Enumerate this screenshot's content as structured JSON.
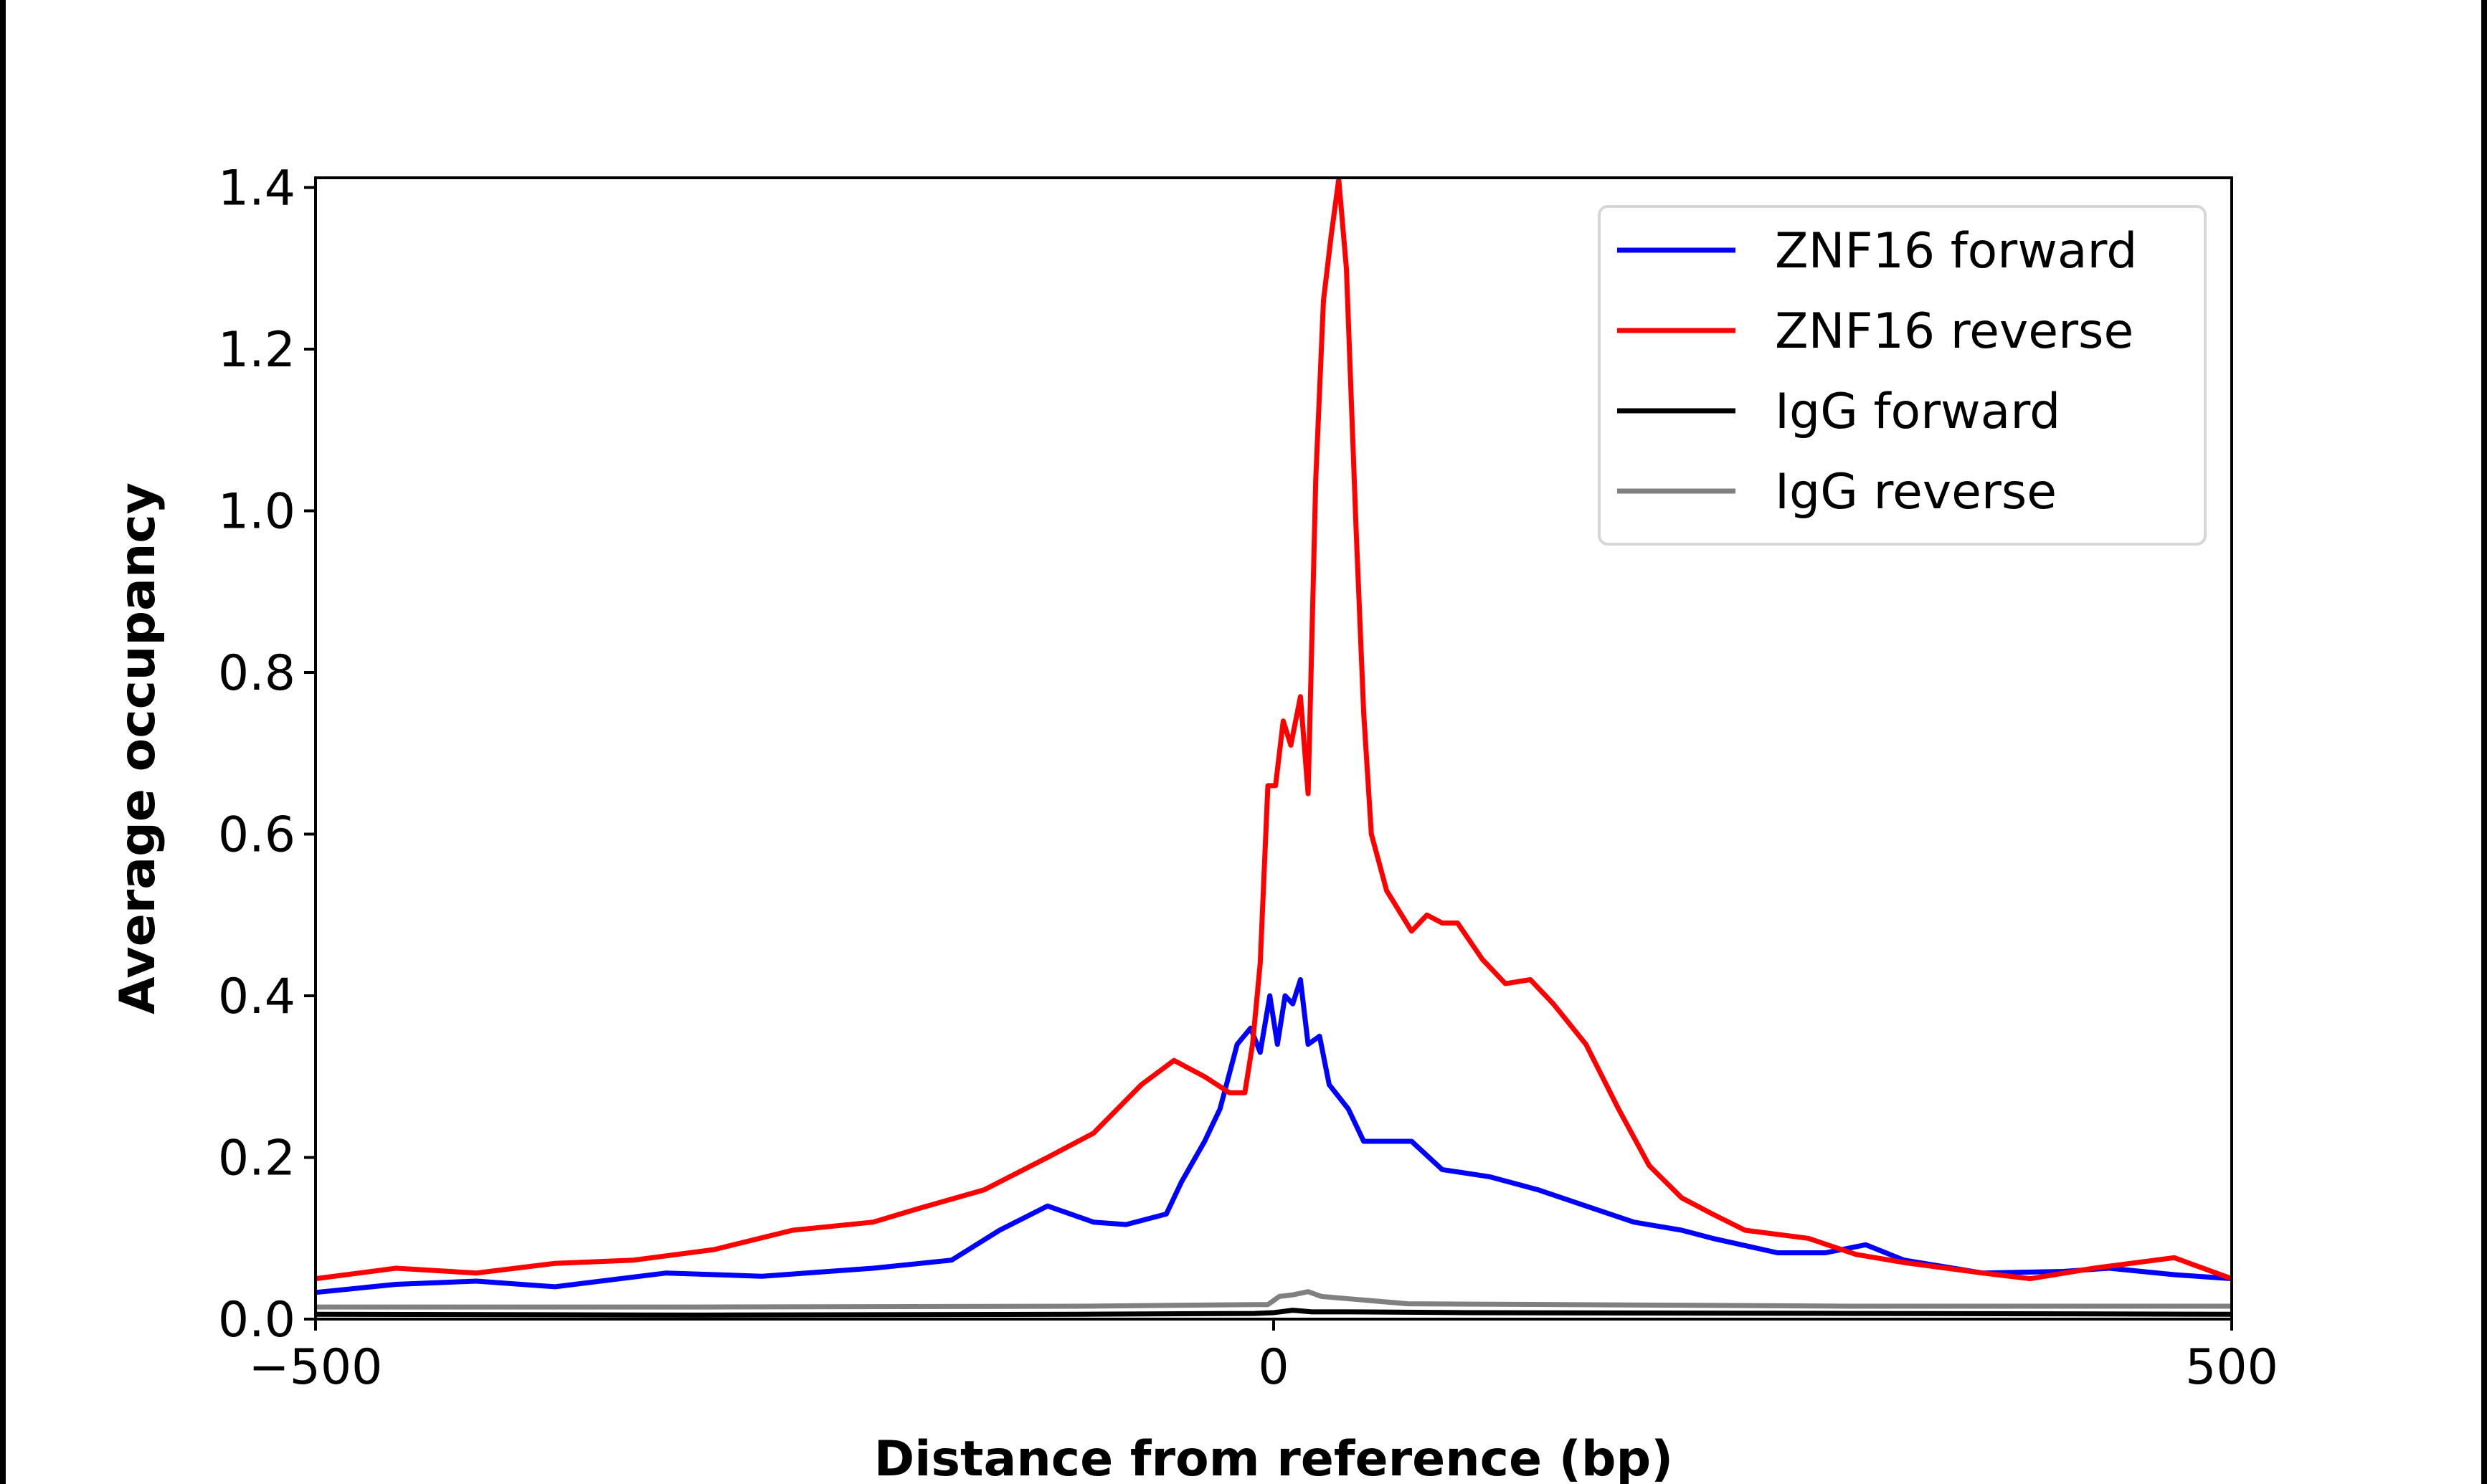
{
  "chart_data": {
    "type": "line",
    "title": "",
    "xlabel": "Distance from reference (bp)",
    "ylabel": "Average occupancy",
    "xlim": [
      -500,
      500
    ],
    "ylim": [
      0,
      1.412
    ],
    "xticks": [
      -500,
      0,
      500
    ],
    "xtick_labels": [
      "−500",
      "0",
      "500"
    ],
    "yticks": [
      0,
      0.2,
      0.4,
      0.6,
      0.8,
      1.0,
      1.2,
      1.4
    ],
    "ytick_labels": [
      "0.0",
      "0.2",
      "0.4",
      "0.6",
      "0.8",
      "1.0",
      "1.2",
      "1.4"
    ],
    "grid": false,
    "legend_position": "top-right",
    "series": [
      {
        "name": "ZNF16 forward",
        "color": "#0000ff",
        "x": [
          -500,
          -458,
          -416,
          -375,
          -317,
          -267,
          -209,
          -168,
          -143,
          -118,
          -94,
          -77,
          -56,
          -48,
          -36,
          -28,
          -19,
          -12,
          -7,
          -2,
          2,
          6,
          10,
          14,
          18,
          24,
          29,
          39,
          47,
          63,
          72,
          88,
          113,
          138,
          163,
          188,
          213,
          229,
          263,
          288,
          309,
          329,
          370,
          412,
          436,
          470,
          500
        ],
        "y": [
          0.033,
          0.043,
          0.047,
          0.04,
          0.057,
          0.053,
          0.063,
          0.073,
          0.11,
          0.14,
          0.12,
          0.117,
          0.13,
          0.17,
          0.22,
          0.26,
          0.34,
          0.36,
          0.33,
          0.4,
          0.34,
          0.4,
          0.39,
          0.42,
          0.34,
          0.35,
          0.29,
          0.26,
          0.22,
          0.22,
          0.22,
          0.185,
          0.176,
          0.16,
          0.14,
          0.12,
          0.11,
          0.1,
          0.082,
          0.082,
          0.092,
          0.073,
          0.057,
          0.059,
          0.063,
          0.055,
          0.05
        ]
      },
      {
        "name": "ZNF16 reverse",
        "color": "#ff0000",
        "x": [
          -500,
          -458,
          -416,
          -375,
          -334,
          -292,
          -251,
          -209,
          -185,
          -151,
          -118,
          -94,
          -69,
          -52,
          -36,
          -23,
          -15,
          -11,
          -7,
          -3,
          1,
          5,
          9,
          14,
          18,
          22,
          26,
          30,
          34,
          38,
          43,
          47,
          51,
          59,
          72,
          80,
          88,
          96,
          109,
          121,
          134,
          146,
          163,
          180,
          196,
          213,
          229,
          246,
          279,
          304,
          329,
          370,
          395,
          428,
          470,
          500
        ],
        "y": [
          0.05,
          0.063,
          0.057,
          0.069,
          0.073,
          0.086,
          0.11,
          0.12,
          0.137,
          0.16,
          0.2,
          0.23,
          0.29,
          0.32,
          0.3,
          0.28,
          0.28,
          0.34,
          0.44,
          0.66,
          0.66,
          0.74,
          0.71,
          0.77,
          0.65,
          1.04,
          1.26,
          1.34,
          1.41,
          1.3,
          0.98,
          0.75,
          0.6,
          0.53,
          0.48,
          0.5,
          0.49,
          0.49,
          0.445,
          0.415,
          0.42,
          0.39,
          0.34,
          0.26,
          0.19,
          0.15,
          0.13,
          0.11,
          0.1,
          0.08,
          0.07,
          0.057,
          0.05,
          0.063,
          0.076,
          0.05
        ]
      },
      {
        "name": "IgG forward",
        "color": "#000000",
        "x": [
          -500,
          -300,
          -100,
          -10,
          0,
          10,
          20,
          40,
          100,
          300,
          500
        ],
        "y": [
          0.006,
          0.005,
          0.006,
          0.007,
          0.008,
          0.011,
          0.009,
          0.009,
          0.008,
          0.007,
          0.006
        ]
      },
      {
        "name": "IgG reverse",
        "color": "#808080",
        "x": [
          -500,
          -300,
          -100,
          -10,
          -3,
          3,
          10,
          18,
          25,
          40,
          70,
          150,
          300,
          500
        ],
        "y": [
          0.015,
          0.015,
          0.016,
          0.018,
          0.018,
          0.028,
          0.03,
          0.034,
          0.028,
          0.025,
          0.019,
          0.018,
          0.016,
          0.016
        ]
      }
    ]
  }
}
